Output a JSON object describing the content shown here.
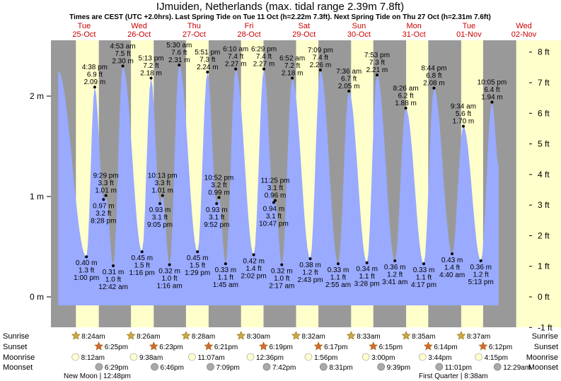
{
  "title": "IJmuiden, Netherlands (max. tidal range 2.39m 7.8ft)",
  "subtitle": "Times are CEST (UTC +2.0hrs). Last Spring Tide on Tue 11 Oct (h=2.22m 7.3ft). Next Spring Tide on Thu 27 Oct (h=2.31m 7.6ft)",
  "colors": {
    "night": "#999999",
    "day": "#ffffcc",
    "water": "#99aaff",
    "sun_rise": "#ccaa44",
    "sun_set": "#dd6633",
    "moon": "#ffffcc",
    "moonset": "#aaaaaa",
    "day_text": "#cc0000"
  },
  "chart_data": {
    "type": "area",
    "ylim_m": [
      -0.1,
      2.55
    ],
    "left_ticks_m": [
      "0 m",
      "1 m",
      "2 m"
    ],
    "right_ticks_ft": [
      "-1 ft",
      "0 ft",
      "1 ft",
      "2 ft",
      "3 ft",
      "4 ft",
      "5 ft",
      "6 ft",
      "7 ft",
      "8 ft"
    ],
    "days": [
      {
        "dow": "Tue",
        "date": "25-Oct"
      },
      {
        "dow": "Wed",
        "date": "26-Oct"
      },
      {
        "dow": "Thu",
        "date": "27-Oct"
      },
      {
        "dow": "Fri",
        "date": "28-Oct"
      },
      {
        "dow": "Sat",
        "date": "29-Oct"
      },
      {
        "dow": "Sun",
        "date": "30-Oct"
      },
      {
        "dow": "Mon",
        "date": "31-Oct"
      },
      {
        "dow": "Tue",
        "date": "01-Nov"
      },
      {
        "dow": "Wed",
        "date": "02-Nov"
      }
    ],
    "tides": [
      {
        "t": "25-Oct 00:40",
        "m": 2.25,
        "label": []
      },
      {
        "t": "25-Oct 13:00",
        "m": 0.4,
        "label": [
          "0.40 m",
          "1.3 ft",
          "1:00 pm"
        ]
      },
      {
        "t": "25-Oct 16:38",
        "m": 2.09,
        "label": [
          "4:38 pm",
          "6.9 ft",
          "2.09 m"
        ]
      },
      {
        "t": "25-Oct 20:28",
        "m": 0.97,
        "label": [
          "0.97 m",
          "3.2 ft",
          "8:28 pm"
        ]
      },
      {
        "t": "25-Oct 21:29",
        "m": 1.01,
        "label": [
          "9:29 pm",
          "3.3 ft",
          "1.01 m"
        ]
      },
      {
        "t": "26-Oct 00:42",
        "m": 0.31,
        "label": [
          "0.31 m",
          "1.0 ft",
          "12:42 am"
        ]
      },
      {
        "t": "26-Oct 04:53",
        "m": 2.3,
        "label": [
          "4:53 am",
          "7.5 ft",
          "2.30 m"
        ]
      },
      {
        "t": "26-Oct 13:16",
        "m": 0.45,
        "label": [
          "0.45 m",
          "1.5 ft",
          "1:16 pm"
        ]
      },
      {
        "t": "26-Oct 17:13",
        "m": 2.18,
        "label": [
          "5:13 pm",
          "7.2 ft",
          "2.18 m"
        ]
      },
      {
        "t": "26-Oct 21:05",
        "m": 0.93,
        "label": [
          "0.93 m",
          "3.1 ft",
          "9:05 pm"
        ]
      },
      {
        "t": "26-Oct 22:13",
        "m": 1.01,
        "label": [
          "10:13 pm",
          "3.3 ft",
          "1.01 m"
        ]
      },
      {
        "t": "27-Oct 01:16",
        "m": 0.32,
        "label": [
          "0.32 m",
          "1.0 ft",
          "1:16 am"
        ]
      },
      {
        "t": "27-Oct 05:30",
        "m": 2.31,
        "label": [
          "5:30 am",
          "7.6 ft",
          "2.31 m"
        ]
      },
      {
        "t": "27-Oct 13:29",
        "m": 0.45,
        "label": [
          "0.45 m",
          "1.5 ft",
          "1:29 pm"
        ]
      },
      {
        "t": "27-Oct 17:51",
        "m": 2.24,
        "label": [
          "5:51 pm",
          "7.3 ft",
          "2.24 m"
        ]
      },
      {
        "t": "27-Oct 21:52",
        "m": 0.93,
        "label": [
          "0.93 m",
          "3.1 ft",
          "9:52 pm"
        ]
      },
      {
        "t": "27-Oct 22:52",
        "m": 0.99,
        "label": [
          "10:52 pm",
          "3.2 ft",
          "0.99 m"
        ]
      },
      {
        "t": "28-Oct 01:45",
        "m": 0.33,
        "label": [
          "0.33 m",
          "1.1 ft",
          "1:45 am"
        ]
      },
      {
        "t": "28-Oct 06:10",
        "m": 2.27,
        "label": [
          "6:10 am",
          "7.4 ft",
          "2.27 m"
        ]
      },
      {
        "t": "28-Oct 14:02",
        "m": 0.42,
        "label": [
          "0.42 m",
          "1.4 ft",
          "2:02 pm"
        ]
      },
      {
        "t": "28-Oct 18:29",
        "m": 2.27,
        "label": [
          "6:29 pm",
          "7.4 ft",
          "2.27 m"
        ]
      },
      {
        "t": "28-Oct 22:47",
        "m": 0.94,
        "label": [
          "0.94 m",
          "3.1 ft",
          "10:47 pm"
        ]
      },
      {
        "t": "28-Oct 23:25",
        "m": 0.96,
        "label": [
          "11:25 pm",
          "3.1 ft",
          "0.96 m"
        ]
      },
      {
        "t": "29-Oct 02:17",
        "m": 0.32,
        "label": [
          "0.32 m",
          "1.0 ft",
          "2:17 am"
        ]
      },
      {
        "t": "29-Oct 06:52",
        "m": 2.18,
        "label": [
          "6:52 am",
          "7.2 ft",
          "2.18 m"
        ]
      },
      {
        "t": "29-Oct 14:43",
        "m": 0.38,
        "label": [
          "0.38 m",
          "1.2 ft",
          "2:43 pm"
        ]
      },
      {
        "t": "29-Oct 19:09",
        "m": 2.26,
        "label": [
          "7:09 pm",
          "7.4 ft",
          "2.26 m"
        ]
      },
      {
        "t": "30-Oct 02:55",
        "m": 0.33,
        "label": [
          "0.33 m",
          "1.1 ft",
          "2:55 am"
        ]
      },
      {
        "t": "30-Oct 07:36",
        "m": 2.05,
        "label": [
          "7:36 am",
          "6.7 ft",
          "2.05 m"
        ]
      },
      {
        "t": "30-Oct 15:28",
        "m": 0.34,
        "label": [
          "0.34 m",
          "1.1 ft",
          "3:28 pm"
        ]
      },
      {
        "t": "30-Oct 19:53",
        "m": 2.21,
        "label": [
          "7:53 pm",
          "7.3 ft",
          "2.21 m"
        ]
      },
      {
        "t": "31-Oct 03:41",
        "m": 0.36,
        "label": [
          "0.36 m",
          "1.2 ft",
          "3:41 am"
        ]
      },
      {
        "t": "31-Oct 08:26",
        "m": 1.88,
        "label": [
          "8:26 am",
          "6.2 ft",
          "1.88 m"
        ]
      },
      {
        "t": "31-Oct 16:17",
        "m": 0.33,
        "label": [
          "0.33 m",
          "1.1 ft",
          "4:17 pm"
        ]
      },
      {
        "t": "31-Oct 20:44",
        "m": 2.08,
        "label": [
          "8:44 pm",
          "6.8 ft",
          "2.08 m"
        ]
      },
      {
        "t": "01-Nov 04:40",
        "m": 0.43,
        "label": [
          "0.43 m",
          "1.4 ft",
          "4:40 am"
        ]
      },
      {
        "t": "01-Nov 09:34",
        "m": 1.7,
        "label": [
          "9:34 am",
          "5.6 ft",
          "1.70 m"
        ]
      },
      {
        "t": "01-Nov 17:13",
        "m": 0.36,
        "label": [
          "0.36 m",
          "1.2 ft",
          "5:13 pm"
        ]
      },
      {
        "t": "01-Nov 22:05",
        "m": 1.94,
        "label": [
          "10:05 pm",
          "6.4 ft",
          "1.94 m"
        ]
      },
      {
        "t": "02-Nov 01:00",
        "m": 1.3,
        "label": []
      }
    ],
    "sunrise": [
      "8:24am",
      "8:26am",
      "8:28am",
      "8:30am",
      "8:32am",
      "8:33am",
      "8:35am",
      "8:37am"
    ],
    "sunset": [
      "6:25pm",
      "6:23pm",
      "6:21pm",
      "6:19pm",
      "6:17pm",
      "6:15pm",
      "6:14pm",
      "6:12pm"
    ],
    "moonrise": [
      "8:12am",
      "9:38am",
      "11:07am",
      "12:36pm",
      "1:56pm",
      "3:00pm",
      "3:44pm",
      "4:15pm"
    ],
    "moonset": [
      "6:29pm",
      "6:46pm",
      "7:09pm",
      "7:42pm",
      "8:31pm",
      "9:39pm",
      "11:01pm",
      "12:29am"
    ],
    "moon_phases": [
      "New Moon | 12:48pm",
      "First Quarter | 8:38am"
    ],
    "row_labels": [
      "Sunrise",
      "Sunset",
      "Moonrise",
      "Moonset"
    ]
  }
}
